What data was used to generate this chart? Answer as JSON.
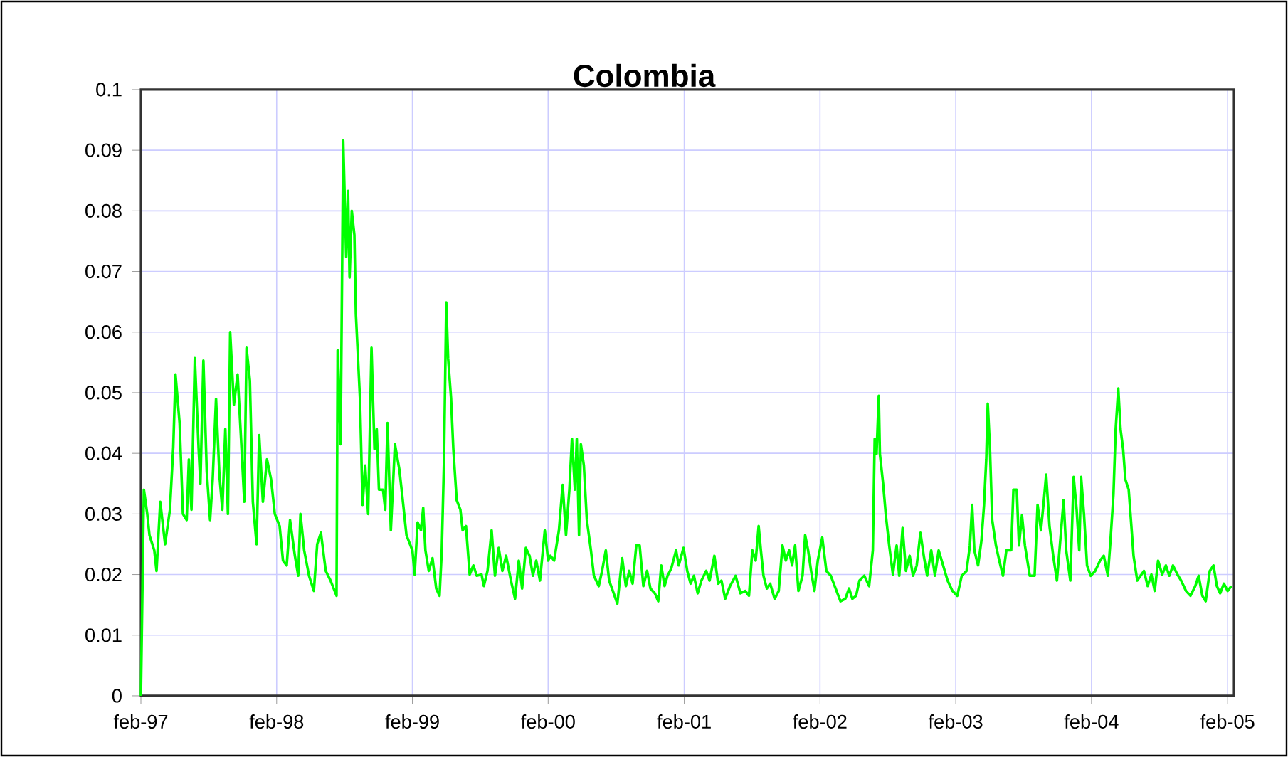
{
  "chart_data": {
    "type": "line",
    "title": "Colombia",
    "x": [
      "1997-02-01",
      "1997-02-09",
      "1997-02-18",
      "1997-02-24",
      "1997-03-09",
      "1997-03-15",
      "1997-03-25",
      "1997-04-07",
      "1997-04-20",
      "1997-04-29",
      "1997-05-05",
      "1997-05-16",
      "1997-05-25",
      "1997-06-04",
      "1997-06-10",
      "1997-06-17",
      "1997-06-26",
      "1997-07-06",
      "1997-07-11",
      "1997-07-19",
      "1997-07-28",
      "1997-08-06",
      "1997-08-13",
      "1997-08-22",
      "1997-08-31",
      "1997-09-08",
      "1997-09-16",
      "1997-09-23",
      "1997-09-29",
      "1997-10-09",
      "1997-10-19",
      "1997-10-29",
      "1997-11-06",
      "1997-11-12",
      "1997-11-21",
      "1997-11-29",
      "1997-12-09",
      "1997-12-16",
      "1997-12-26",
      "1998-01-06",
      "1998-01-17",
      "1998-01-27",
      "1998-02-09",
      "1998-02-18",
      "1998-02-28",
      "1998-03-09",
      "1998-03-22",
      "1998-03-31",
      "1998-04-06",
      "1998-04-16",
      "1998-04-29",
      "1998-05-12",
      "1998-05-21",
      "1998-05-31",
      "1998-06-13",
      "1998-06-26",
      "1998-07-12",
      "1998-07-15",
      "1998-07-23",
      "1998-07-30",
      "1998-08-07",
      "1998-08-12",
      "1998-08-16",
      "1998-08-22",
      "1998-08-29",
      "1998-09-02",
      "1998-09-13",
      "1998-09-20",
      "1998-09-27",
      "1998-10-05",
      "1998-10-14",
      "1998-10-22",
      "1998-10-28",
      "1998-11-03",
      "1998-11-14",
      "1998-11-20",
      "1998-11-26",
      "1998-12-05",
      "1998-12-16",
      "1998-12-28",
      "1999-01-06",
      "1999-01-16",
      "1999-02-01",
      "1999-02-07",
      "1999-02-15",
      "1999-02-24",
      "1999-03-02",
      "1999-03-08",
      "1999-03-17",
      "1999-03-27",
      "1999-04-06",
      "1999-04-15",
      "1999-04-21",
      "1999-04-27",
      "1999-05-03",
      "1999-05-08",
      "1999-05-16",
      "1999-05-22",
      "1999-05-31",
      "1999-06-10",
      "1999-06-16",
      "1999-06-25",
      "1999-07-05",
      "1999-07-15",
      "1999-07-24",
      "1999-08-06",
      "1999-08-12",
      "1999-08-22",
      "1999-09-02",
      "1999-09-11",
      "1999-09-21",
      "1999-10-01",
      "1999-10-11",
      "1999-10-24",
      "1999-11-04",
      "1999-11-14",
      "1999-11-23",
      "1999-12-03",
      "1999-12-13",
      "1999-12-22",
      "1999-12-31",
      "2000-01-10",
      "2000-01-23",
      "2000-02-01",
      "2000-02-07",
      "2000-02-17",
      "2000-03-01",
      "2000-03-11",
      "2000-03-20",
      "2000-03-29",
      "2000-04-05",
      "2000-04-13",
      "2000-04-18",
      "2000-04-24",
      "2000-04-29",
      "2000-05-07",
      "2000-05-15",
      "2000-05-26",
      "2000-06-03",
      "2000-06-16",
      "2000-06-25",
      "2000-07-05",
      "2000-07-14",
      "2000-07-24",
      "2000-08-05",
      "2000-08-18",
      "2000-08-28",
      "2000-09-06",
      "2000-09-15",
      "2000-09-25",
      "2000-10-04",
      "2000-10-14",
      "2000-10-24",
      "2000-11-02",
      "2000-11-14",
      "2000-11-23",
      "2000-12-01",
      "2000-12-10",
      "2000-12-18",
      "2000-12-28",
      "2001-01-10",
      "2001-01-17",
      "2001-01-30",
      "2001-02-09",
      "2001-02-18",
      "2001-02-27",
      "2001-03-09",
      "2001-03-19",
      "2001-04-01",
      "2001-04-10",
      "2001-04-23",
      "2001-05-03",
      "2001-05-12",
      "2001-05-22",
      "2001-06-04",
      "2001-06-19",
      "2001-07-02",
      "2001-07-15",
      "2001-07-25",
      "2001-08-03",
      "2001-08-12",
      "2001-08-20",
      "2001-08-26",
      "2001-09-02",
      "2001-09-11",
      "2001-09-20",
      "2001-10-02",
      "2001-10-13",
      "2001-10-23",
      "2001-11-01",
      "2001-11-10",
      "2001-11-18",
      "2001-11-26",
      "2001-12-05",
      "2001-12-16",
      "2001-12-23",
      "2001-12-31",
      "2002-01-08",
      "2002-01-17",
      "2002-01-26",
      "2002-02-07",
      "2002-02-18",
      "2002-03-02",
      "2002-03-15",
      "2002-03-28",
      "2002-04-10",
      "2002-04-20",
      "2002-04-29",
      "2002-05-09",
      "2002-05-18",
      "2002-05-31",
      "2002-06-13",
      "2002-06-23",
      "2002-06-28",
      "2002-07-03",
      "2002-07-09",
      "2002-07-12",
      "2002-07-21",
      "2002-07-28",
      "2002-08-06",
      "2002-08-16",
      "2002-08-26",
      "2002-09-02",
      "2002-09-11",
      "2002-09-20",
      "2002-09-30",
      "2002-10-09",
      "2002-10-19",
      "2002-10-29",
      "2002-11-07",
      "2002-11-16",
      "2002-11-27",
      "2002-12-07",
      "2002-12-17",
      "2002-12-29",
      "2003-01-10",
      "2003-01-23",
      "2003-02-05",
      "2003-02-17",
      "2003-03-02",
      "2003-03-11",
      "2003-03-17",
      "2003-03-23",
      "2003-04-02",
      "2003-04-11",
      "2003-04-18",
      "2003-04-24",
      "2003-04-28",
      "2003-05-04",
      "2003-05-10",
      "2003-05-20",
      "2003-05-29",
      "2003-06-08",
      "2003-06-17",
      "2003-06-30",
      "2003-07-06",
      "2003-07-15",
      "2003-07-21",
      "2003-07-29",
      "2003-08-06",
      "2003-08-19",
      "2003-09-01",
      "2003-09-09",
      "2003-09-18",
      "2003-09-26",
      "2003-10-02",
      "2003-10-11",
      "2003-10-21",
      "2003-10-31",
      "2003-11-09",
      "2003-11-18",
      "2003-11-25",
      "2003-12-06",
      "2003-12-15",
      "2003-12-23",
      "2003-12-30",
      "2004-01-04",
      "2004-01-12",
      "2004-01-20",
      "2004-01-30",
      "2004-02-11",
      "2004-02-24",
      "2004-03-05",
      "2004-03-16",
      "2004-03-23",
      "2004-03-31",
      "2004-04-06",
      "2004-04-13",
      "2004-04-19",
      "2004-04-26",
      "2004-05-02",
      "2004-05-11",
      "2004-05-17",
      "2004-05-24",
      "2004-06-03",
      "2004-06-12",
      "2004-06-21",
      "2004-07-01",
      "2004-07-11",
      "2004-07-20",
      "2004-07-29",
      "2004-08-09",
      "2004-08-19",
      "2004-08-28",
      "2004-09-07",
      "2004-09-19",
      "2004-09-29",
      "2004-10-12",
      "2004-10-24",
      "2004-11-06",
      "2004-11-15",
      "2004-11-25",
      "2004-12-04",
      "2004-12-15",
      "2004-12-25",
      "2005-01-03",
      "2005-01-12",
      "2005-01-22",
      "2005-02-01",
      "2005-02-11"
    ],
    "series": [
      {
        "color": "#00ff00",
        "values": [
          0,
          0.034,
          0.03,
          0.0265,
          0.024,
          0.0206,
          0.032,
          0.025,
          0.0307,
          0.041,
          0.053,
          0.045,
          0.03,
          0.029,
          0.039,
          0.0307,
          0.0557,
          0.041,
          0.035,
          0.0553,
          0.037,
          0.029,
          0.0357,
          0.049,
          0.0365,
          0.0307,
          0.044,
          0.03,
          0.06,
          0.048,
          0.053,
          0.0415,
          0.032,
          0.0574,
          0.052,
          0.032,
          0.025,
          0.043,
          0.032,
          0.039,
          0.0357,
          0.03,
          0.028,
          0.0223,
          0.0215,
          0.029,
          0.0231,
          0.0198,
          0.03,
          0.024,
          0.0198,
          0.0173,
          0.025,
          0.0269,
          0.0206,
          0.019,
          0.0165,
          0.057,
          0.0415,
          0.0916,
          0.0724,
          0.0833,
          0.069,
          0.08,
          0.076,
          0.063,
          0.049,
          0.0315,
          0.038,
          0.03,
          0.0574,
          0.0407,
          0.044,
          0.034,
          0.034,
          0.0307,
          0.045,
          0.0273,
          0.0415,
          0.0373,
          0.0323,
          0.0265,
          0.024,
          0.02,
          0.0286,
          0.0273,
          0.031,
          0.024,
          0.0206,
          0.0227,
          0.0177,
          0.0165,
          0.024,
          0.039,
          0.0649,
          0.0557,
          0.049,
          0.0407,
          0.0323,
          0.0307,
          0.0273,
          0.028,
          0.02,
          0.0215,
          0.0198,
          0.02,
          0.0181,
          0.0206,
          0.0273,
          0.0198,
          0.0244,
          0.0206,
          0.0231,
          0.019,
          0.016,
          0.0223,
          0.0177,
          0.0244,
          0.0231,
          0.0198,
          0.0223,
          0.019,
          0.0273,
          0.0223,
          0.0231,
          0.0223,
          0.0273,
          0.0348,
          0.0265,
          0.034,
          0.0424,
          0.034,
          0.0424,
          0.0265,
          0.0415,
          0.038,
          0.029,
          0.024,
          0.0198,
          0.0181,
          0.0206,
          0.024,
          0.019,
          0.0173,
          0.0152,
          0.0227,
          0.0181,
          0.0206,
          0.0185,
          0.0248,
          0.0248,
          0.0181,
          0.0206,
          0.0177,
          0.0169,
          0.0156,
          0.0215,
          0.0181,
          0.0198,
          0.021,
          0.024,
          0.0215,
          0.0244,
          0.0206,
          0.0185,
          0.0198,
          0.0169,
          0.019,
          0.0206,
          0.019,
          0.0231,
          0.0185,
          0.019,
          0.016,
          0.0181,
          0.0198,
          0.0169,
          0.0173,
          0.0165,
          0.024,
          0.0223,
          0.028,
          0.024,
          0.0198,
          0.0177,
          0.0185,
          0.016,
          0.0173,
          0.0248,
          0.0223,
          0.024,
          0.0215,
          0.0248,
          0.0173,
          0.0198,
          0.0265,
          0.024,
          0.0206,
          0.0173,
          0.0223,
          0.0261,
          0.0206,
          0.0198,
          0.0177,
          0.0156,
          0.016,
          0.0177,
          0.016,
          0.0165,
          0.019,
          0.0198,
          0.0181,
          0.024,
          0.0424,
          0.0399,
          0.0495,
          0.0399,
          0.0348,
          0.0298,
          0.0248,
          0.02,
          0.0248,
          0.0198,
          0.0277,
          0.0206,
          0.0231,
          0.0198,
          0.0215,
          0.0269,
          0.0231,
          0.0198,
          0.024,
          0.0198,
          0.024,
          0.0215,
          0.019,
          0.0173,
          0.0165,
          0.0198,
          0.0206,
          0.0248,
          0.0315,
          0.024,
          0.0215,
          0.0256,
          0.0315,
          0.039,
          0.0482,
          0.0407,
          0.029,
          0.0248,
          0.0223,
          0.0198,
          0.024,
          0.024,
          0.034,
          0.034,
          0.0248,
          0.0298,
          0.0248,
          0.0198,
          0.0198,
          0.0315,
          0.0273,
          0.0323,
          0.0365,
          0.028,
          0.0231,
          0.019,
          0.0256,
          0.0323,
          0.024,
          0.019,
          0.0361,
          0.0307,
          0.024,
          0.0361,
          0.0298,
          0.0215,
          0.0198,
          0.0206,
          0.0223,
          0.0231,
          0.0198,
          0.0256,
          0.0332,
          0.044,
          0.0507,
          0.044,
          0.0407,
          0.0357,
          0.034,
          0.029,
          0.0231,
          0.019,
          0.0198,
          0.0206,
          0.0181,
          0.02,
          0.0173,
          0.0223,
          0.02,
          0.0215,
          0.0198,
          0.0215,
          0.02,
          0.019,
          0.0173,
          0.0165,
          0.0181,
          0.0198,
          0.0165,
          0.0156,
          0.0206,
          0.0215,
          0.0181,
          0.0169,
          0.0185,
          0.0173,
          0.0181
        ]
      }
    ],
    "xlim": [
      "1997-02-01",
      "2005-02-18"
    ],
    "xticks": [
      {
        "value": "1997-02-01",
        "label": "feb-97"
      },
      {
        "value": "1998-02-01",
        "label": "feb-98"
      },
      {
        "value": "1999-02-01",
        "label": "feb-99"
      },
      {
        "value": "2000-02-01",
        "label": "feb-00"
      },
      {
        "value": "2001-02-01",
        "label": "feb-01"
      },
      {
        "value": "2002-02-01",
        "label": "feb-02"
      },
      {
        "value": "2003-02-01",
        "label": "feb-03"
      },
      {
        "value": "2004-02-01",
        "label": "feb-04"
      },
      {
        "value": "2005-02-01",
        "label": "feb-05"
      }
    ],
    "ylim": [
      0,
      0.1
    ],
    "yticks": [
      0,
      0.01,
      0.02,
      0.03,
      0.04,
      0.05,
      0.06,
      0.07,
      0.08,
      0.09,
      0.1
    ],
    "grid": true
  }
}
